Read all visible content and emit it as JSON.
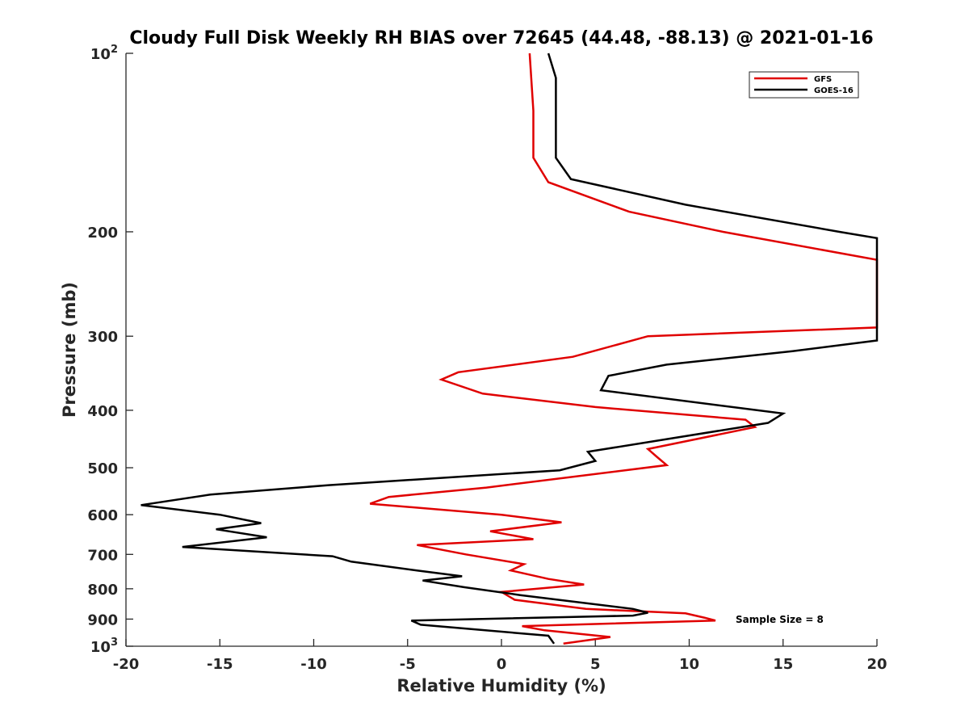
{
  "chart_data": {
    "type": "line",
    "title": "Cloudy Full Disk Weekly RH BIAS over 72645 (44.48, -88.13) @ 2021-01-16",
    "xlabel": "Relative Humidity (%)",
    "ylabel": "Pressure (mb)",
    "xlim": [
      -20,
      20
    ],
    "ylim": [
      100,
      1000
    ],
    "y_scale": "log",
    "y_reversed": true,
    "x_ticks": [
      "-20",
      "-15",
      "-10",
      "-5",
      "0",
      "5",
      "10",
      "15",
      "20"
    ],
    "y_ticks": [
      {
        "value": 100,
        "base": "10",
        "exp": "2"
      },
      {
        "value": 200,
        "label": "200"
      },
      {
        "value": 300,
        "label": "300"
      },
      {
        "value": 400,
        "label": "400"
      },
      {
        "value": 500,
        "label": "500"
      },
      {
        "value": 600,
        "label": "600"
      },
      {
        "value": 700,
        "label": "700"
      },
      {
        "value": 800,
        "label": "800"
      },
      {
        "value": 900,
        "label": "900"
      },
      {
        "value": 1000,
        "base": "10",
        "exp": "3"
      }
    ],
    "legend_position": "top-right",
    "grid": false,
    "annotation": "Sample Size = 8",
    "series": [
      {
        "name": "GFS",
        "color": "#e00000",
        "points": [
          [
            1.5,
            100
          ],
          [
            1.7,
            125
          ],
          [
            1.7,
            150
          ],
          [
            2.5,
            165
          ],
          [
            6.8,
            185
          ],
          [
            11.8,
            200
          ],
          [
            20.0,
            223
          ],
          [
            20.0,
            290
          ],
          [
            7.8,
            300
          ],
          [
            3.8,
            325
          ],
          [
            -2.3,
            345
          ],
          [
            -3.2,
            355
          ],
          [
            -1.0,
            375
          ],
          [
            5.0,
            395
          ],
          [
            13.0,
            415
          ],
          [
            13.5,
            427
          ],
          [
            7.8,
            465
          ],
          [
            8.3,
            480
          ],
          [
            8.8,
            495
          ],
          [
            -0.8,
            540
          ],
          [
            -6.0,
            560
          ],
          [
            -7.0,
            575
          ],
          [
            0.0,
            600
          ],
          [
            3.2,
            618
          ],
          [
            -0.6,
            640
          ],
          [
            1.7,
            660
          ],
          [
            -4.5,
            675
          ],
          [
            -1.9,
            700
          ],
          [
            1.2,
            727
          ],
          [
            0.5,
            745
          ],
          [
            2.5,
            770
          ],
          [
            4.4,
            787
          ],
          [
            0.0,
            810
          ],
          [
            0.7,
            835
          ],
          [
            4.5,
            865
          ],
          [
            9.8,
            880
          ],
          [
            10.8,
            895
          ],
          [
            11.4,
            905
          ],
          [
            1.1,
            925
          ],
          [
            2.3,
            940
          ],
          [
            5.8,
            965
          ],
          [
            3.3,
            990
          ]
        ]
      },
      {
        "name": "GOES-16",
        "color": "#000000",
        "points": [
          [
            2.5,
            100
          ],
          [
            2.9,
            110
          ],
          [
            2.9,
            125
          ],
          [
            2.9,
            150
          ],
          [
            3.7,
            163
          ],
          [
            9.8,
            180
          ],
          [
            18.0,
            200
          ],
          [
            20.0,
            205
          ],
          [
            20.0,
            305
          ],
          [
            15.5,
            318
          ],
          [
            8.8,
            335
          ],
          [
            5.7,
            350
          ],
          [
            5.3,
            370
          ],
          [
            15.0,
            405
          ],
          [
            14.2,
            420
          ],
          [
            4.6,
            470
          ],
          [
            5.0,
            487
          ],
          [
            3.1,
            505
          ],
          [
            -9.2,
            535
          ],
          [
            -15.5,
            555
          ],
          [
            -19.2,
            578
          ],
          [
            -15.0,
            600
          ],
          [
            -12.8,
            620
          ],
          [
            -15.2,
            635
          ],
          [
            -12.5,
            655
          ],
          [
            -17.0,
            680
          ],
          [
            -9.0,
            705
          ],
          [
            -8.0,
            720
          ],
          [
            -4.5,
            745
          ],
          [
            -2.1,
            762
          ],
          [
            -4.2,
            775
          ],
          [
            -2.0,
            795
          ],
          [
            1.0,
            820
          ],
          [
            7.0,
            865
          ],
          [
            7.8,
            878
          ],
          [
            7.0,
            888
          ],
          [
            -4.8,
            905
          ],
          [
            -4.3,
            920
          ],
          [
            2.5,
            960
          ],
          [
            2.8,
            990
          ]
        ]
      }
    ]
  }
}
